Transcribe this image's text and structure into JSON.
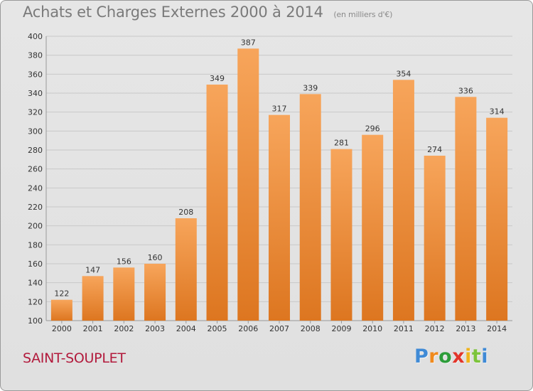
{
  "title": "Achats et Charges Externes 2000 à 2014",
  "subtitle": "(en milliers d'€)",
  "place": "SAINT-SOUPLET",
  "logo": {
    "text": "Proxiti",
    "letters": [
      "P",
      "r",
      "o",
      "x",
      "i",
      "t",
      "i"
    ]
  },
  "colors": {
    "bar_top": "#f7a55b",
    "bar_bottom": "#dd7620",
    "grid": "#c8c8c8",
    "axis_text": "#333333",
    "title": "#7a7a7a",
    "place": "#b21a3c"
  },
  "chart_data": {
    "type": "bar",
    "title": "Achats et Charges Externes 2000 à 2014",
    "subtitle": "(en milliers d'€)",
    "categories": [
      "2000",
      "2001",
      "2002",
      "2003",
      "2004",
      "2005",
      "2006",
      "2007",
      "2008",
      "2009",
      "2010",
      "2011",
      "2012",
      "2013",
      "2014"
    ],
    "values": [
      122,
      147,
      156,
      160,
      208,
      349,
      387,
      317,
      339,
      281,
      296,
      354,
      274,
      336,
      314
    ],
    "ylim": [
      100,
      400
    ],
    "yticks": [
      100,
      120,
      140,
      160,
      180,
      200,
      220,
      240,
      260,
      280,
      300,
      320,
      340,
      360,
      380,
      400
    ],
    "grid": true,
    "xlabel": "",
    "ylabel": ""
  }
}
